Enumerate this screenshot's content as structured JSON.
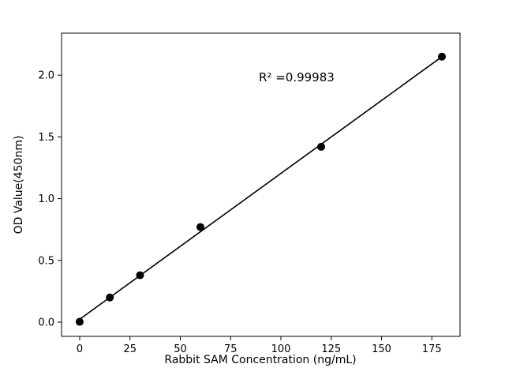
{
  "chart_data": {
    "type": "scatter",
    "title": "",
    "xlabel": "Rabbit SAM Concentration (ng/mL)",
    "ylabel": "OD Value(450nm)",
    "annotation": "R² =0.99983",
    "r_squared": 0.99983,
    "series": [
      {
        "name": "standard-curve",
        "points": [
          [
            0,
            0.003
          ],
          [
            15,
            0.2
          ],
          [
            30,
            0.38
          ],
          [
            60,
            0.77
          ],
          [
            120,
            1.42
          ],
          [
            180,
            2.15
          ]
        ]
      }
    ],
    "fit": "linear",
    "xticks": [
      0,
      25,
      50,
      75,
      100,
      125,
      150,
      175
    ],
    "yticks": [
      "0.0",
      "0.5",
      "1.0",
      "1.5",
      "2.0"
    ],
    "xlim": [
      -9,
      189
    ],
    "ylim": [
      -0.115,
      2.34
    ],
    "grid": false,
    "legend": "none",
    "marker_color": "#000000",
    "line_color": "#000000",
    "background_color": "#ffffff"
  }
}
